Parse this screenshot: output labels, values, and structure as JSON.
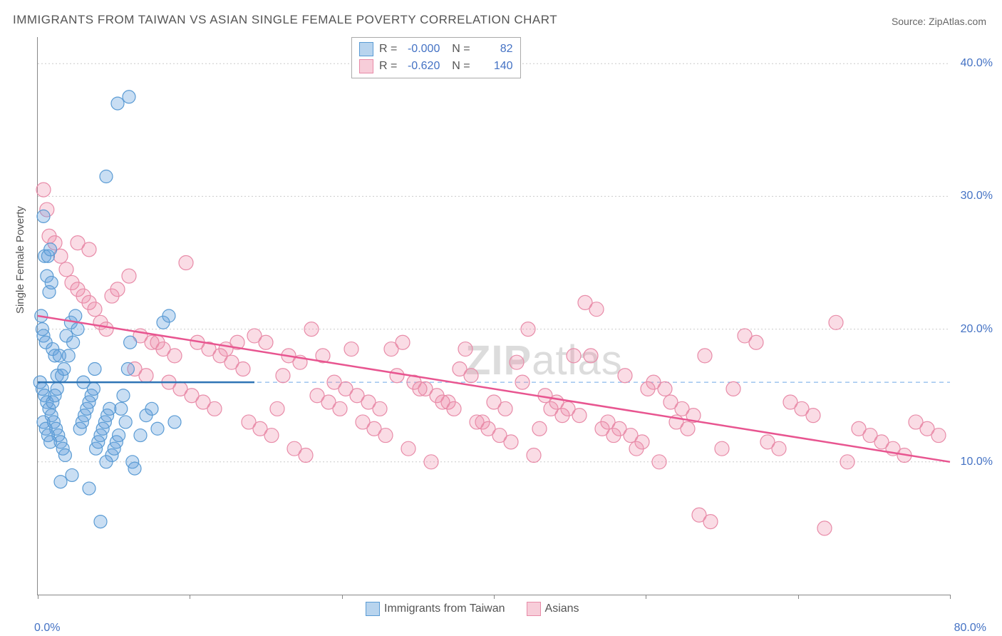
{
  "title": "IMMIGRANTS FROM TAIWAN VS ASIAN SINGLE FEMALE POVERTY CORRELATION CHART",
  "source": "Source: ZipAtlas.com",
  "watermark_a": "ZIP",
  "watermark_b": "atlas",
  "chart": {
    "type": "scatter",
    "ylabel": "Single Female Poverty",
    "xlim": [
      0,
      80
    ],
    "ylim": [
      0,
      42
    ],
    "ytick_values": [
      10,
      20,
      30,
      40
    ],
    "ytick_labels": [
      "10.0%",
      "20.0%",
      "30.0%",
      "40.0%"
    ],
    "xtick_values": [
      0,
      13.33,
      26.67,
      40,
      53.33,
      66.67,
      80
    ],
    "xtick_labels_left": "0.0%",
    "xtick_labels_right": "80.0%",
    "dashed_ref_y": 16.0,
    "background": "#ffffff",
    "grid_color": "#cccccc",
    "axis_label_color": "#4472c4",
    "axis_label_fontsize": 16
  },
  "series": [
    {
      "name": "Immigrants from Taiwan",
      "color_fill": "rgba(99,160,220,0.35)",
      "color_stroke": "#5a9bd4",
      "swatch_fill": "#b8d4ee",
      "swatch_border": "#5a9bd4",
      "R": "-0.000",
      "N": "82",
      "marker_radius": 9,
      "trend": {
        "x1": 0,
        "y1": 16.0,
        "x2": 19,
        "y2": 16.0,
        "color": "#2e74b5",
        "width": 2.5
      },
      "points": [
        [
          0.5,
          28.5
        ],
        [
          0.6,
          25.5
        ],
        [
          0.8,
          24.0
        ],
        [
          1.0,
          22.8
        ],
        [
          1.2,
          23.5
        ],
        [
          0.3,
          21.0
        ],
        [
          0.4,
          20.0
        ],
        [
          0.5,
          19.5
        ],
        [
          0.7,
          19.0
        ],
        [
          0.9,
          25.5
        ],
        [
          1.1,
          26.0
        ],
        [
          1.3,
          18.5
        ],
        [
          1.5,
          18.0
        ],
        [
          1.7,
          16.5
        ],
        [
          0.2,
          16.0
        ],
        [
          0.4,
          15.5
        ],
        [
          0.6,
          15.0
        ],
        [
          0.8,
          14.5
        ],
        [
          1.0,
          14.0
        ],
        [
          1.2,
          13.5
        ],
        [
          1.4,
          13.0
        ],
        [
          1.6,
          12.5
        ],
        [
          1.8,
          12.0
        ],
        [
          2.0,
          11.5
        ],
        [
          2.2,
          11.0
        ],
        [
          2.4,
          10.5
        ],
        [
          0.5,
          13.0
        ],
        [
          0.7,
          12.5
        ],
        [
          0.9,
          12.0
        ],
        [
          1.1,
          11.5
        ],
        [
          1.3,
          14.5
        ],
        [
          1.5,
          15.0
        ],
        [
          1.7,
          15.5
        ],
        [
          1.9,
          18.0
        ],
        [
          2.1,
          16.5
        ],
        [
          2.3,
          17.0
        ],
        [
          2.5,
          19.5
        ],
        [
          2.7,
          18.0
        ],
        [
          2.9,
          20.5
        ],
        [
          3.1,
          19.0
        ],
        [
          3.3,
          21.0
        ],
        [
          3.5,
          20.0
        ],
        [
          3.7,
          12.5
        ],
        [
          3.9,
          13.0
        ],
        [
          4.1,
          13.5
        ],
        [
          4.3,
          14.0
        ],
        [
          4.5,
          14.5
        ],
        [
          4.7,
          15.0
        ],
        [
          4.9,
          15.5
        ],
        [
          5.1,
          11.0
        ],
        [
          5.3,
          11.5
        ],
        [
          5.5,
          12.0
        ],
        [
          5.7,
          12.5
        ],
        [
          5.9,
          13.0
        ],
        [
          6.1,
          13.5
        ],
        [
          6.3,
          14.0
        ],
        [
          6.5,
          10.5
        ],
        [
          6.7,
          11.0
        ],
        [
          6.9,
          11.5
        ],
        [
          7.1,
          12.0
        ],
        [
          7.3,
          14.0
        ],
        [
          7.5,
          15.0
        ],
        [
          7.7,
          13.0
        ],
        [
          7.9,
          17.0
        ],
        [
          8.1,
          19.0
        ],
        [
          8.3,
          10.0
        ],
        [
          8.5,
          9.5
        ],
        [
          9.0,
          12.0
        ],
        [
          9.5,
          13.5
        ],
        [
          10.0,
          14.0
        ],
        [
          10.5,
          12.5
        ],
        [
          11.0,
          20.5
        ],
        [
          11.5,
          21.0
        ],
        [
          12.0,
          13.0
        ],
        [
          4.0,
          16.0
        ],
        [
          5.0,
          17.0
        ],
        [
          6.0,
          10.0
        ],
        [
          2.0,
          8.5
        ],
        [
          3.0,
          9.0
        ],
        [
          4.5,
          8.0
        ],
        [
          7.0,
          37.0
        ],
        [
          8.0,
          37.5
        ],
        [
          6.0,
          31.5
        ],
        [
          5.5,
          5.5
        ]
      ]
    },
    {
      "name": "Asians",
      "color_fill": "rgba(240,140,170,0.30)",
      "color_stroke": "#e88ba8",
      "swatch_fill": "#f7cdd9",
      "swatch_border": "#e88ba8",
      "R": "-0.620",
      "N": "140",
      "marker_radius": 10,
      "trend": {
        "x1": 0,
        "y1": 21.0,
        "x2": 80,
        "y2": 10.0,
        "color": "#e85590",
        "width": 2.5
      },
      "points": [
        [
          0.5,
          30.5
        ],
        [
          0.8,
          29.0
        ],
        [
          1.0,
          27.0
        ],
        [
          1.5,
          26.5
        ],
        [
          2.0,
          25.5
        ],
        [
          2.5,
          24.5
        ],
        [
          3.0,
          23.5
        ],
        [
          3.5,
          23.0
        ],
        [
          4.0,
          22.5
        ],
        [
          4.5,
          22.0
        ],
        [
          5.0,
          21.5
        ],
        [
          5.5,
          20.5
        ],
        [
          6.0,
          20.0
        ],
        [
          6.5,
          22.5
        ],
        [
          7.0,
          23.0
        ],
        [
          8.0,
          24.0
        ],
        [
          9.0,
          19.5
        ],
        [
          10.0,
          19.0
        ],
        [
          11.0,
          18.5
        ],
        [
          12.0,
          18.0
        ],
        [
          13.0,
          25.0
        ],
        [
          14.0,
          19.0
        ],
        [
          15.0,
          18.5
        ],
        [
          16.0,
          18.0
        ],
        [
          17.0,
          17.5
        ],
        [
          18.0,
          17.0
        ],
        [
          19.0,
          19.5
        ],
        [
          20.0,
          19.0
        ],
        [
          21.0,
          14.0
        ],
        [
          22.0,
          18.0
        ],
        [
          23.0,
          17.5
        ],
        [
          24.0,
          20.0
        ],
        [
          25.0,
          18.0
        ],
        [
          26.0,
          16.0
        ],
        [
          27.0,
          15.5
        ],
        [
          28.0,
          15.0
        ],
        [
          29.0,
          14.5
        ],
        [
          30.0,
          14.0
        ],
        [
          31.0,
          18.5
        ],
        [
          32.0,
          19.0
        ],
        [
          33.0,
          16.0
        ],
        [
          34.0,
          15.5
        ],
        [
          35.0,
          15.0
        ],
        [
          36.0,
          14.5
        ],
        [
          37.0,
          17.0
        ],
        [
          38.0,
          16.5
        ],
        [
          39.0,
          13.0
        ],
        [
          40.0,
          14.5
        ],
        [
          41.0,
          14.0
        ],
        [
          42.0,
          17.5
        ],
        [
          43.0,
          20.0
        ],
        [
          44.0,
          12.5
        ],
        [
          45.0,
          14.0
        ],
        [
          46.0,
          13.5
        ],
        [
          47.0,
          18.0
        ],
        [
          48.0,
          22.0
        ],
        [
          49.0,
          21.5
        ],
        [
          50.0,
          13.0
        ],
        [
          51.0,
          12.5
        ],
        [
          52.0,
          12.0
        ],
        [
          53.0,
          11.5
        ],
        [
          54.0,
          16.0
        ],
        [
          55.0,
          15.5
        ],
        [
          56.0,
          13.0
        ],
        [
          57.0,
          12.5
        ],
        [
          58.0,
          6.0
        ],
        [
          59.0,
          5.5
        ],
        [
          60.0,
          11.0
        ],
        [
          61.0,
          15.5
        ],
        [
          62.0,
          19.5
        ],
        [
          63.0,
          19.0
        ],
        [
          64.0,
          11.5
        ],
        [
          65.0,
          11.0
        ],
        [
          66.0,
          14.5
        ],
        [
          67.0,
          14.0
        ],
        [
          68.0,
          13.5
        ],
        [
          69.0,
          5.0
        ],
        [
          70.0,
          20.5
        ],
        [
          71.0,
          10.0
        ],
        [
          72.0,
          12.5
        ],
        [
          73.0,
          12.0
        ],
        [
          74.0,
          11.5
        ],
        [
          75.0,
          11.0
        ],
        [
          76.0,
          10.5
        ],
        [
          77.0,
          13.0
        ],
        [
          78.0,
          12.5
        ],
        [
          79.0,
          12.0
        ],
        [
          3.5,
          26.5
        ],
        [
          4.5,
          26.0
        ],
        [
          8.5,
          17.0
        ],
        [
          9.5,
          16.5
        ],
        [
          10.5,
          19.0
        ],
        [
          11.5,
          16.0
        ],
        [
          12.5,
          15.5
        ],
        [
          13.5,
          15.0
        ],
        [
          14.5,
          14.5
        ],
        [
          15.5,
          14.0
        ],
        [
          16.5,
          18.5
        ],
        [
          17.5,
          19.0
        ],
        [
          18.5,
          13.0
        ],
        [
          19.5,
          12.5
        ],
        [
          20.5,
          12.0
        ],
        [
          21.5,
          16.5
        ],
        [
          22.5,
          11.0
        ],
        [
          23.5,
          10.5
        ],
        [
          24.5,
          15.0
        ],
        [
          25.5,
          14.5
        ],
        [
          26.5,
          14.0
        ],
        [
          27.5,
          18.5
        ],
        [
          28.5,
          13.0
        ],
        [
          29.5,
          12.5
        ],
        [
          30.5,
          12.0
        ],
        [
          31.5,
          16.5
        ],
        [
          32.5,
          11.0
        ],
        [
          33.5,
          15.5
        ],
        [
          34.5,
          10.0
        ],
        [
          35.5,
          14.5
        ],
        [
          36.5,
          14.0
        ],
        [
          37.5,
          18.5
        ],
        [
          38.5,
          13.0
        ],
        [
          39.5,
          12.5
        ],
        [
          40.5,
          12.0
        ],
        [
          41.5,
          11.5
        ],
        [
          42.5,
          16.0
        ],
        [
          43.5,
          10.5
        ],
        [
          44.5,
          15.0
        ],
        [
          45.5,
          14.5
        ],
        [
          46.5,
          14.0
        ],
        [
          47.5,
          13.5
        ],
        [
          48.5,
          18.0
        ],
        [
          49.5,
          12.5
        ],
        [
          50.5,
          12.0
        ],
        [
          51.5,
          16.5
        ],
        [
          52.5,
          11.0
        ],
        [
          53.5,
          15.5
        ],
        [
          54.5,
          10.0
        ],
        [
          55.5,
          14.5
        ],
        [
          56.5,
          14.0
        ],
        [
          57.5,
          13.5
        ],
        [
          58.5,
          18.0
        ]
      ]
    }
  ],
  "bottom_legend": {
    "items": [
      "Immigrants from Taiwan",
      "Asians"
    ]
  }
}
